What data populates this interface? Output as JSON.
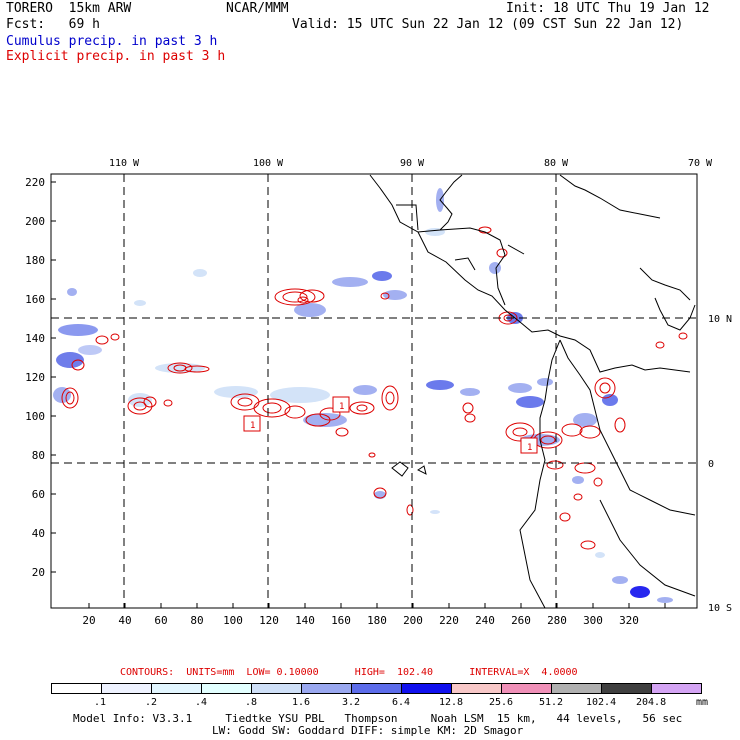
{
  "header": {
    "model": "TORERO  15km ARW",
    "org": "NCAR/MMM",
    "init": "Init: 18 UTC Thu 19 Jan 12",
    "fcst": "Fcst:   69 h",
    "valid": "Valid: 15 UTC Sun 22 Jan 12 (09 CST Sun 22 Jan 12)",
    "legend_cumulus": "Cumulus precip. in past 3 h",
    "legend_explicit": "Explicit precip. in past 3 h",
    "cumulus_color": "#0000cc",
    "explicit_color": "#dd0000"
  },
  "axes": {
    "top_lon_labels": [
      "110 W",
      "100 W",
      "90 W",
      "80 W",
      "70 W"
    ],
    "right_lat_labels": [
      "10 N",
      "0",
      "10 S"
    ],
    "y_ticks": [
      "220",
      "200",
      "180",
      "160",
      "140",
      "120",
      "100",
      "80",
      "60",
      "40",
      "20"
    ],
    "x_ticks": [
      "20",
      "40",
      "60",
      "80",
      "100",
      "120",
      "140",
      "160",
      "180",
      "200",
      "220",
      "240",
      "260",
      "280",
      "300",
      "320"
    ]
  },
  "contours_line": {
    "label": "CONTOURS:  UNITS=mm  LOW= 0.10000      HIGH=  102.40      INTERVAL=X  4.0000"
  },
  "box_labels": [
    "1",
    "1",
    "1"
  ],
  "colorbar": {
    "levels": [
      ".1",
      ".2",
      ".4",
      ".8",
      "1.6",
      "3.2",
      "6.4",
      "12.8",
      "25.6",
      "51.2",
      "102.4",
      "204.8"
    ],
    "unit": "mm",
    "colors": [
      "#ffffff",
      "#eef2ff",
      "#e2f6ff",
      "#e2ffff",
      "#cfe0f8",
      "#9aa8f0",
      "#5c6cea",
      "#1010ee",
      "#f8c8c8",
      "#f090b8",
      "#b0b0b0",
      "#404040",
      "#d4a4f4"
    ]
  },
  "footer": {
    "line1": "Model Info: V3.3.1     Tiedtke YSU PBL   Thompson     Noah LSM  15 km,   44 levels,   56 sec",
    "line2": "LW: Godd SW: Goddard DIFF: simple KM: 2D Smagor"
  }
}
